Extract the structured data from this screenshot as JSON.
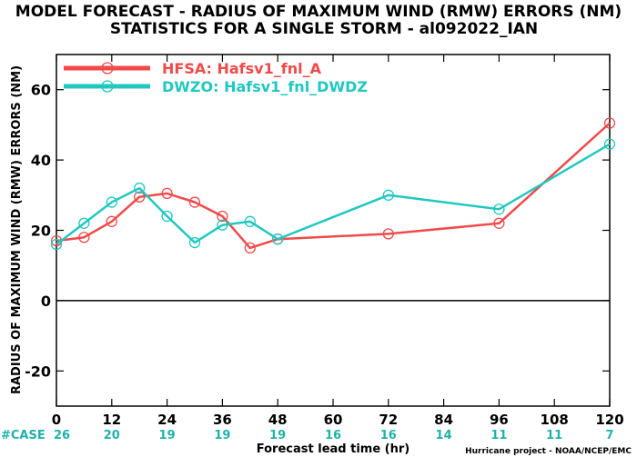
{
  "chart_data": {
    "type": "line",
    "title": "MODEL FORECAST - RADIUS OF MAXIMUM WIND (RMW) ERRORS (NM)",
    "subtitle": "STATISTICS FOR A SINGLE STORM - al092022_IAN",
    "xlabel": "Forecast lead time (hr)",
    "ylabel": "RADIUS OF MAXIMUM WIND (RMW) ERRORS (NM)",
    "xlim": [
      0,
      120
    ],
    "ylim": [
      -30,
      70
    ],
    "x_ticks": [
      0,
      12,
      24,
      36,
      48,
      60,
      72,
      84,
      96,
      108,
      120
    ],
    "y_ticks": [
      -20,
      0,
      20,
      40,
      60
    ],
    "zero_line": true,
    "legend_position": "top-left",
    "series": [
      {
        "name": "HFSA: Hafsv1_fnl_A",
        "color": "#f04a4a",
        "x": [
          0,
          6,
          12,
          18,
          24,
          30,
          36,
          42,
          48,
          72,
          96,
          120
        ],
        "y": [
          17,
          18,
          22.5,
          29.5,
          30.5,
          28,
          24,
          15,
          17.5,
          19,
          22,
          50.5
        ]
      },
      {
        "name": "DWZO: Hafsv1_fnl_DWDZ",
        "color": "#20c8c0",
        "x": [
          0,
          6,
          12,
          18,
          24,
          30,
          36,
          42,
          48,
          72,
          96,
          120
        ],
        "y": [
          16,
          22,
          28,
          32,
          24,
          16.5,
          21.5,
          22.5,
          17.5,
          30,
          26,
          44.5
        ]
      }
    ],
    "cases": {
      "label": "#CASE",
      "x": [
        0,
        12,
        24,
        36,
        48,
        60,
        72,
        84,
        96,
        108,
        120
      ],
      "counts": [
        "26",
        "20",
        "19",
        "19",
        "19",
        "16",
        "16",
        "14",
        "11",
        "11",
        "7"
      ]
    },
    "credit": "Hurricane project - NOAA/NCEP/EMC"
  }
}
